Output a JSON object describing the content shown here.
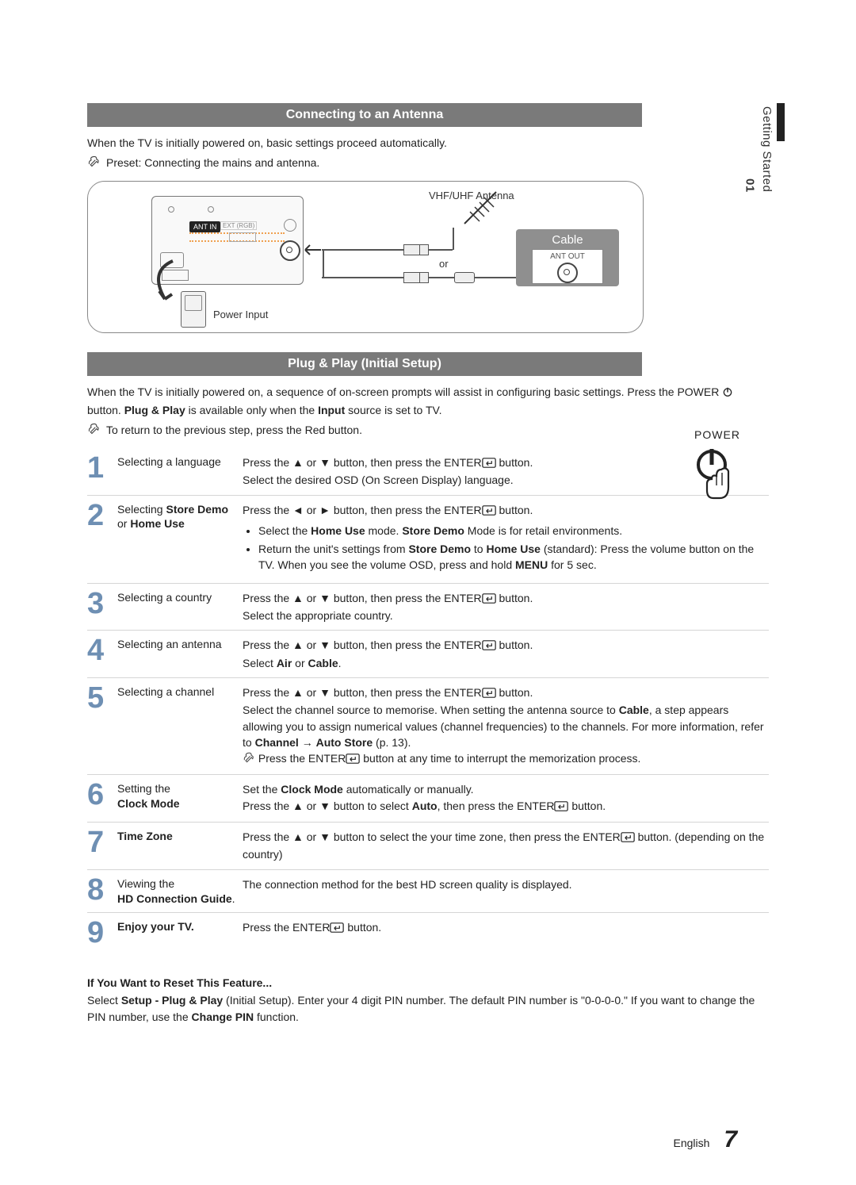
{
  "side": {
    "chapter": "01",
    "section": "Getting Started"
  },
  "sec1": {
    "title": "Connecting to an Antenna",
    "intro": "When the TV is initially powered on, basic settings proceed automatically.",
    "note": "Preset: Connecting the mains and antenna.",
    "diagram": {
      "antenna_label": "VHF/UHF Antenna",
      "cable_label": "Cable",
      "antout_label": "ANT OUT",
      "or_label": "or",
      "power_label": "Power Input",
      "antin_label": "ANT IN",
      "ext_label": "EXT (RGB)"
    }
  },
  "sec2": {
    "title": "Plug & Play (Initial Setup)",
    "intro_pre": "When the TV is initially powered on, a sequence of on-screen prompts will assist in configuring basic settings. Press the POWER ",
    "intro_post_a": " button. ",
    "intro_bold1": "Plug & Play",
    "intro_mid": " is available only when the ",
    "intro_bold2": "Input",
    "intro_end": " source is set to TV.",
    "note": "To return to the previous step, press the Red button.",
    "power_label": "POWER"
  },
  "steps": [
    {
      "num": "1",
      "title_plain": "Selecting a language",
      "desc_parts": [
        {
          "t": "Press the ▲ or ▼ button, then press the ENTER"
        },
        {
          "enter": true
        },
        {
          "t": " button."
        },
        {
          "br": true
        },
        {
          "t": "Select the desired OSD (On Screen Display) language."
        }
      ]
    },
    {
      "num": "2",
      "title_html": "Selecting <b>Store Demo</b> or <b>Home Use</b>",
      "desc_parts": [
        {
          "t": "Press the ◄ or ► button, then press the ENTER"
        },
        {
          "enter": true
        },
        {
          "t": " button."
        },
        {
          "ul": [
            "Select the <b>Home Use</b> mode. <b>Store Demo</b> Mode is for retail environments.",
            "Return the unit's settings from <b>Store Demo</b> to <b>Home Use</b> (standard): Press the volume button on the TV. When you see the volume OSD, press and hold <b>MENU</b> for 5 sec."
          ]
        }
      ]
    },
    {
      "num": "3",
      "title_plain": "Selecting a country",
      "desc_parts": [
        {
          "t": "Press the ▲ or ▼ button, then press the ENTER"
        },
        {
          "enter": true
        },
        {
          "t": " button."
        },
        {
          "br": true
        },
        {
          "t": "Select the appropriate country."
        }
      ]
    },
    {
      "num": "4",
      "title_plain": "Selecting an antenna",
      "desc_parts": [
        {
          "t": "Press the ▲ or ▼ button, then press the ENTER"
        },
        {
          "enter": true
        },
        {
          "t": " button."
        },
        {
          "br": true
        },
        {
          "t": "Select "
        },
        {
          "b": "Air"
        },
        {
          "t": " or "
        },
        {
          "b": "Cable"
        },
        {
          "t": "."
        }
      ]
    },
    {
      "num": "5",
      "title_plain": "Selecting a channel",
      "desc_parts": [
        {
          "t": "Press the ▲ or ▼ button, then press the ENTER"
        },
        {
          "enter": true
        },
        {
          "t": " button."
        },
        {
          "br": true
        },
        {
          "t": "Select the channel source to memorise. When setting the antenna source to "
        },
        {
          "b": "Cable"
        },
        {
          "t": ", a step appears allowing you to assign numerical values (channel frequencies) to the channels. For more information, refer to "
        },
        {
          "b": "Channel"
        },
        {
          "t": " → "
        },
        {
          "b": "Auto Store"
        },
        {
          "t": " (p. 13)."
        },
        {
          "br": true
        },
        {
          "note": true
        },
        {
          "t": " Press the ENTER"
        },
        {
          "enter": true
        },
        {
          "t": " button at any time to interrupt the memorization process."
        }
      ]
    },
    {
      "num": "6",
      "title_html": "Setting the<br><b>Clock Mode</b>",
      "desc_parts": [
        {
          "t": "Set the "
        },
        {
          "b": "Clock Mode"
        },
        {
          "t": " automatically or manually."
        },
        {
          "br": true
        },
        {
          "t": "Press the ▲ or ▼ button to select "
        },
        {
          "b": "Auto"
        },
        {
          "t": ", then press the ENTER"
        },
        {
          "enter": true
        },
        {
          "t": " button."
        }
      ]
    },
    {
      "num": "7",
      "title_html": "<b>Time Zone</b>",
      "desc_parts": [
        {
          "t": "Press the ▲ or ▼ button to select the your time zone, then press the ENTER"
        },
        {
          "enter": true
        },
        {
          "t": " button. (depending on the country)"
        }
      ]
    },
    {
      "num": "8",
      "title_html": "Viewing the<br><b>HD Connection Guide</b>.",
      "desc_parts": [
        {
          "t": "The connection method for the best HD screen quality is displayed."
        }
      ]
    },
    {
      "num": "9",
      "title_html": "<b>Enjoy your TV.</b>",
      "desc_parts": [
        {
          "t": "Press the ENTER"
        },
        {
          "enter": true
        },
        {
          "t": " button."
        }
      ]
    }
  ],
  "reset": {
    "head": "If You Want to Reset This Feature...",
    "body_pre": "Select ",
    "body_b1": "Setup - Plug & Play",
    "body_mid1": " (Initial Setup). Enter your 4 digit PIN number. The default PIN number is \"0-0-0-0.\" If you want to change the PIN number, use the ",
    "body_b2": "Change PIN",
    "body_end": " function."
  },
  "footer": {
    "lang": "English",
    "page": "7"
  },
  "colors": {
    "bar_bg": "#7a7a7a",
    "step_num": "#6e8fb3",
    "border": "#d5d5d5"
  }
}
